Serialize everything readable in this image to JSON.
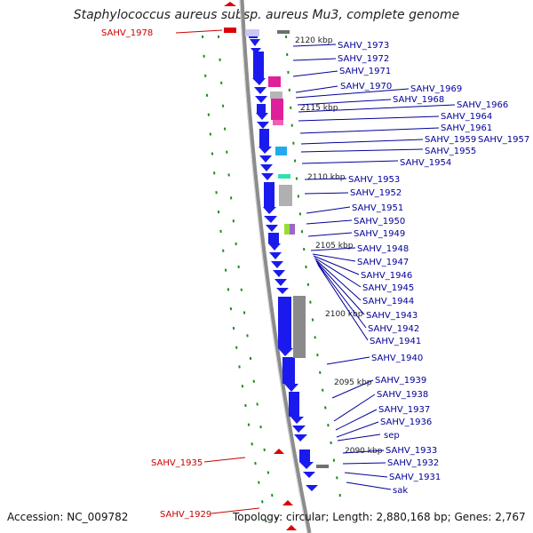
{
  "title": "Staphylococcus aureus subsp. aureus Mu3, complete genome",
  "accession": "Accession: NC_009782",
  "summary": "Topology: circular; Length: 2,880,168 bp; Genes: 2,767",
  "colors": {
    "backbone": "#999999",
    "forward_gene": "#1a1aee",
    "reverse_gene_label": "#cc0000",
    "gene_label": "#000099",
    "tick": "#1e8c1e",
    "kbp_label": "#222222"
  },
  "kbp_ticks": [
    "2120 kbp",
    "2115 kbp",
    "2110 kbp",
    "2105 kbp",
    "2100 kbp",
    "2095 kbp",
    "2090 kbp"
  ],
  "reverse_labels": [
    "SAHV_1978",
    "SAHV_1935",
    "SAHV_1929"
  ],
  "gene_labels": [
    "SAHV_1973",
    "SAHV_1972",
    "SAHV_1971",
    "SAHV_1970",
    "SAHV_1969",
    "SAHV_1968",
    "SAHV_1966",
    "SAHV_1964",
    "SAHV_1961",
    "SAHV_1959",
    "SAHV_1957",
    "SAHV_1955",
    "SAHV_1954",
    "SAHV_1953",
    "SAHV_1952",
    "SAHV_1951",
    "SAHV_1950",
    "SAHV_1949",
    "SAHV_1948",
    "SAHV_1947",
    "SAHV_1946",
    "SAHV_1945",
    "SAHV_1944",
    "SAHV_1943",
    "SAHV_1942",
    "SAHV_1941",
    "SAHV_1940",
    "SAHV_1939",
    "SAHV_1938",
    "SAHV_1937",
    "SAHV_1936",
    "sep",
    "SAHV_1933",
    "SAHV_1932",
    "SAHV_1931",
    "sak"
  ]
}
